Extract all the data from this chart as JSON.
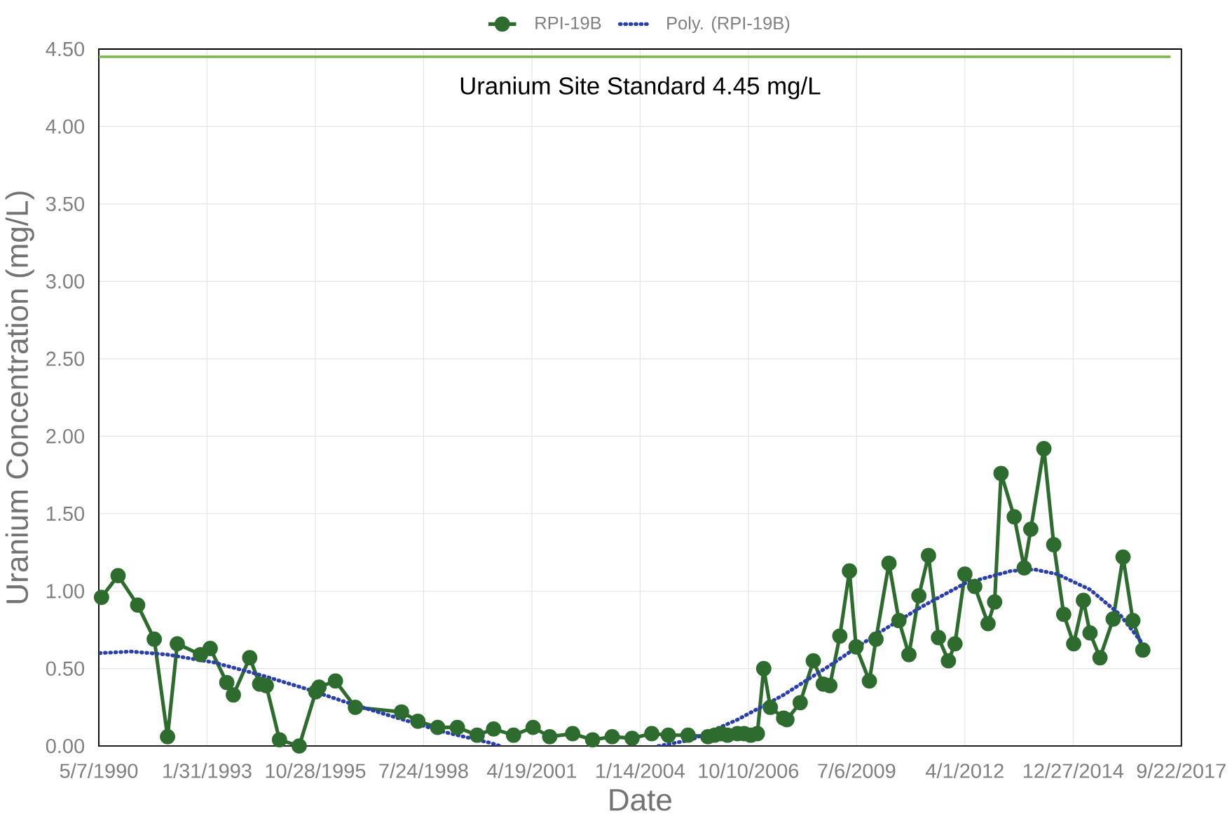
{
  "chart_data": {
    "type": "line",
    "xlabel": "Date",
    "ylabel": "Uranium Concentration (mg/L)",
    "xlim": [
      "1990-05-07",
      "2017-09-22"
    ],
    "xticks": [
      {
        "value": "1990-05-07",
        "label": "5/7/1990"
      },
      {
        "value": "1993-01-31",
        "label": "1/31/1993"
      },
      {
        "value": "1995-10-28",
        "label": "10/28/1995"
      },
      {
        "value": "1998-07-24",
        "label": "7/24/1998"
      },
      {
        "value": "2001-04-19",
        "label": "4/19/2001"
      },
      {
        "value": "2004-01-14",
        "label": "1/14/2004"
      },
      {
        "value": "2006-10-10",
        "label": "10/10/2006"
      },
      {
        "value": "2009-07-06",
        "label": "7/6/2009"
      },
      {
        "value": "2012-04-01",
        "label": "4/1/2012"
      },
      {
        "value": "2014-12-27",
        "label": "12/27/2014"
      },
      {
        "value": "2017-09-22",
        "label": "9/22/2017"
      }
    ],
    "ylim": [
      0,
      4.5
    ],
    "yticks": [
      {
        "value": 0,
        "label": "0.00"
      },
      {
        "value": 0.5,
        "label": "0.50"
      },
      {
        "value": 1,
        "label": "1.00"
      },
      {
        "value": 1.5,
        "label": "1.50"
      },
      {
        "value": 2,
        "label": "2.00"
      },
      {
        "value": 2.5,
        "label": "2.50"
      },
      {
        "value": 3,
        "label": "3.00"
      },
      {
        "value": 3.5,
        "label": "3.50"
      },
      {
        "value": 4,
        "label": "4.00"
      },
      {
        "value": 4.5,
        "label": "4.50"
      }
    ],
    "grid": true,
    "legend": "top",
    "series": [
      {
        "name": "RPI-19B",
        "color": "#2e6b2e",
        "marker": "circle",
        "line_style": "solid",
        "x": [
          "1990-06",
          "1990-11",
          "1991-05",
          "1991-10",
          "1992-02",
          "1992-05",
          "1992-12",
          "1993-03",
          "1993-08",
          "1993-10",
          "1994-03",
          "1994-06",
          "1994-08",
          "1994-12",
          "1995-06",
          "1995-11",
          "1995-12",
          "1996-05",
          "1996-11",
          "1998-01",
          "1998-06",
          "1998-12",
          "1999-06",
          "1999-12",
          "2000-05",
          "2000-11",
          "2001-05",
          "2001-10",
          "2002-05",
          "2002-11",
          "2003-05",
          "2003-11",
          "2004-05",
          "2004-10",
          "2005-04",
          "2005-10",
          "2005-12",
          "2006-02",
          "2006-04",
          "2006-07",
          "2006-09",
          "2006-11",
          "2007-01",
          "2007-03",
          "2007-05",
          "2007-09",
          "2007-10",
          "2008-02",
          "2008-06",
          "2008-09",
          "2008-11",
          "2009-02",
          "2009-05",
          "2009-07",
          "2009-11",
          "2010-01",
          "2010-05",
          "2010-08",
          "2010-11",
          "2011-02",
          "2011-05",
          "2011-08",
          "2011-11",
          "2012-01",
          "2012-04",
          "2012-07",
          "2012-11",
          "2013-01",
          "2013-03",
          "2013-07",
          "2013-10",
          "2013-12",
          "2014-04",
          "2014-07",
          "2014-10",
          "2015-01",
          "2015-04",
          "2015-06",
          "2015-09",
          "2016-01",
          "2016-04",
          "2016-07",
          "2016-10"
        ],
        "values": [
          0.96,
          1.1,
          0.91,
          0.69,
          0.06,
          0.66,
          0.59,
          0.63,
          0.41,
          0.33,
          0.57,
          0.4,
          0.39,
          0.04,
          0.0,
          0.35,
          0.38,
          0.42,
          0.25,
          0.22,
          0.16,
          0.12,
          0.12,
          0.07,
          0.11,
          0.07,
          0.12,
          0.06,
          0.08,
          0.04,
          0.06,
          0.05,
          0.08,
          0.07,
          0.07,
          0.06,
          0.07,
          0.08,
          0.07,
          0.08,
          0.08,
          0.07,
          0.08,
          0.5,
          0.25,
          0.18,
          0.17,
          0.28,
          0.55,
          0.4,
          0.39,
          0.71,
          1.13,
          0.64,
          0.42,
          0.69,
          1.18,
          0.81,
          0.59,
          0.97,
          1.23,
          0.7,
          0.55,
          0.66,
          1.11,
          1.03,
          0.79,
          0.93,
          1.76,
          1.48,
          1.15,
          1.4,
          1.92,
          1.3,
          0.85,
          0.66,
          0.94,
          0.73,
          0.57,
          0.82,
          1.22,
          0.81,
          0.62
        ]
      },
      {
        "name": "Poly. (RPI-19B)",
        "color": "#2b3fa8",
        "marker": "none",
        "line_style": "dotted",
        "x": [
          "1990-05-15",
          "1991-03",
          "1992-02",
          "1993-04",
          "1994-06",
          "1995-08",
          "1996-10",
          "1997-12",
          "1999-02",
          "2000-04",
          "2000-07",
          "2003-01",
          "2004-07",
          "2005-05",
          "2006-07",
          "2007-09",
          "2008-11",
          "2010-01",
          "2011-03",
          "2012-04",
          "2013-06",
          "2014-01",
          "2014-08",
          "2015-06",
          "2016-03",
          "2016-10"
        ],
        "values": [
          0.6,
          0.61,
          0.59,
          0.54,
          0.46,
          0.37,
          0.27,
          0.18,
          0.09,
          0.02,
          0.0,
          null,
          0.0,
          0.04,
          0.17,
          0.33,
          0.52,
          0.72,
          0.9,
          1.05,
          1.13,
          1.14,
          1.11,
          1.01,
          0.85,
          0.66
        ]
      }
    ],
    "ref_lines": [
      {
        "axis": "y",
        "value": 4.45,
        "label": "Uranium Site Standard 4.45 mg/L",
        "color": "#7ab648"
      }
    ]
  }
}
